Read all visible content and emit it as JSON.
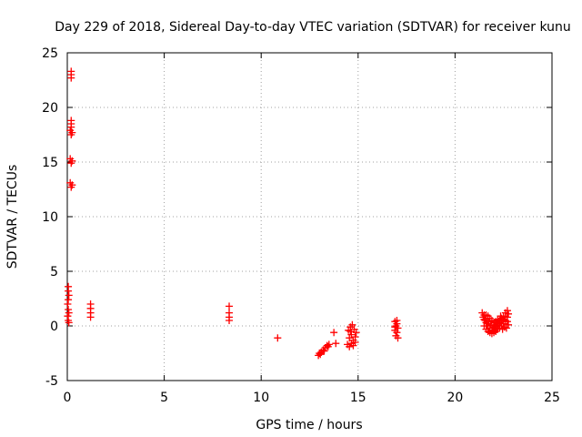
{
  "chart_data": {
    "type": "scatter",
    "title": "Day 229 of 2018, Sidereal Day-to-day VTEC variation (SDTVAR) for receiver kunu",
    "xlabel": "GPS time / hours",
    "ylabel": "SDTVAR / TECUs",
    "xlim": [
      0,
      25
    ],
    "ylim": [
      -5,
      25
    ],
    "xticks": [
      0,
      5,
      10,
      15,
      20,
      25
    ],
    "yticks": [
      -5,
      0,
      5,
      10,
      15,
      20,
      25
    ],
    "grid": true,
    "marker": "+",
    "color": "#ff0000",
    "series": [
      {
        "name": "SDTVAR",
        "points": [
          [
            0.2,
            23.3
          ],
          [
            0.2,
            23.0
          ],
          [
            0.2,
            22.7
          ],
          [
            0.2,
            18.8
          ],
          [
            0.2,
            18.5
          ],
          [
            0.2,
            18.2
          ],
          [
            0.15,
            17.9
          ],
          [
            0.25,
            17.7
          ],
          [
            0.2,
            17.5
          ],
          [
            0.15,
            15.3
          ],
          [
            0.25,
            15.1
          ],
          [
            0.2,
            14.9
          ],
          [
            0.15,
            13.1
          ],
          [
            0.25,
            12.9
          ],
          [
            0.2,
            12.7
          ],
          [
            0.05,
            3.6
          ],
          [
            0.05,
            3.2
          ],
          [
            0.08,
            2.8
          ],
          [
            0.05,
            2.4
          ],
          [
            0.02,
            2.0
          ],
          [
            0.05,
            1.5
          ],
          [
            0.08,
            1.2
          ],
          [
            0.02,
            0.9
          ],
          [
            0.05,
            0.5
          ],
          [
            0.08,
            0.3
          ],
          [
            1.2,
            2.0
          ],
          [
            1.2,
            1.6
          ],
          [
            1.2,
            1.2
          ],
          [
            1.2,
            0.8
          ],
          [
            8.35,
            1.8
          ],
          [
            8.35,
            1.2
          ],
          [
            8.35,
            0.8
          ],
          [
            8.35,
            0.5
          ],
          [
            10.85,
            -1.1
          ],
          [
            12.95,
            -2.7
          ],
          [
            13.0,
            -2.5
          ],
          [
            13.1,
            -2.4
          ],
          [
            13.2,
            -2.2
          ],
          [
            13.3,
            -2.0
          ],
          [
            13.4,
            -1.8
          ],
          [
            13.5,
            -1.7
          ],
          [
            13.05,
            -2.6
          ],
          [
            13.25,
            -2.3
          ],
          [
            13.45,
            -1.9
          ],
          [
            13.75,
            -0.6
          ],
          [
            13.85,
            -1.6
          ],
          [
            14.45,
            -1.7
          ],
          [
            14.55,
            -1.9
          ],
          [
            14.65,
            -1.6
          ],
          [
            14.75,
            -1.3
          ],
          [
            14.85,
            -1.0
          ],
          [
            14.5,
            -0.4
          ],
          [
            14.6,
            -0.1
          ],
          [
            14.7,
            0.1
          ],
          [
            14.8,
            -0.3
          ],
          [
            14.9,
            -0.6
          ],
          [
            14.55,
            -1.1
          ],
          [
            14.65,
            -0.8
          ],
          [
            14.75,
            -1.8
          ],
          [
            14.85,
            -1.5
          ],
          [
            14.6,
            -0.5
          ],
          [
            16.9,
            0.4
          ],
          [
            17.0,
            0.2
          ],
          [
            16.95,
            0.0
          ],
          [
            17.05,
            -0.2
          ],
          [
            16.9,
            -0.4
          ],
          [
            17.0,
            -0.6
          ],
          [
            16.95,
            -0.9
          ],
          [
            17.05,
            -1.1
          ],
          [
            17.0,
            0.5
          ],
          [
            16.9,
            -0.1
          ],
          [
            21.4,
            1.2
          ],
          [
            21.5,
            1.0
          ],
          [
            21.5,
            0.6
          ],
          [
            21.6,
            0.3
          ],
          [
            21.7,
            0.0
          ],
          [
            21.8,
            -0.2
          ],
          [
            21.9,
            -0.4
          ],
          [
            22.0,
            -0.6
          ],
          [
            22.1,
            -0.5
          ],
          [
            22.2,
            -0.3
          ],
          [
            22.3,
            -0.2
          ],
          [
            22.4,
            0.0
          ],
          [
            22.5,
            0.2
          ],
          [
            22.6,
            0.5
          ],
          [
            22.7,
            0.8
          ],
          [
            22.75,
            1.1
          ],
          [
            22.7,
            1.4
          ],
          [
            22.6,
            1.2
          ],
          [
            22.5,
            0.9
          ],
          [
            22.4,
            0.7
          ],
          [
            22.3,
            0.5
          ],
          [
            22.2,
            0.6
          ],
          [
            22.1,
            0.4
          ],
          [
            22.0,
            0.3
          ],
          [
            21.9,
            0.5
          ],
          [
            21.8,
            0.7
          ],
          [
            21.7,
            0.9
          ],
          [
            21.6,
            1.0
          ],
          [
            21.5,
            0.0
          ],
          [
            21.6,
            -0.3
          ],
          [
            21.7,
            -0.5
          ],
          [
            21.8,
            -0.6
          ],
          [
            21.9,
            -0.7
          ],
          [
            22.0,
            -0.4
          ],
          [
            22.1,
            -0.1
          ],
          [
            22.2,
            0.1
          ],
          [
            22.3,
            0.3
          ],
          [
            22.4,
            0.4
          ],
          [
            22.5,
            0.6
          ],
          [
            22.6,
            0.8
          ],
          [
            22.7,
            0.4
          ],
          [
            22.75,
            0.1
          ],
          [
            22.65,
            -0.2
          ],
          [
            22.55,
            -0.1
          ],
          [
            22.45,
            -0.3
          ],
          [
            22.35,
            0.9
          ],
          [
            21.55,
            0.5
          ],
          [
            21.65,
            0.2
          ],
          [
            21.75,
            0.4
          ],
          [
            21.85,
            0.1
          ],
          [
            21.95,
            -0.2
          ],
          [
            22.05,
            0.0
          ],
          [
            22.15,
            0.2
          ],
          [
            21.45,
            0.8
          ]
        ]
      }
    ]
  }
}
